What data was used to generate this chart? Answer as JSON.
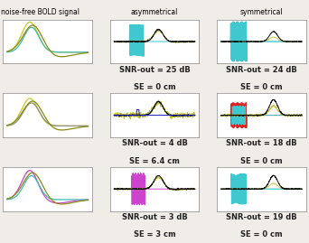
{
  "title_left": "noise-free BOLD signal",
  "title_mid": "asymmetrical",
  "title_right": "symmetrical",
  "labels": [
    [
      "SNR-out = 25 dB",
      "SE = 0 cm"
    ],
    [
      "SNR-out = 4 dB",
      "SE = 6.4 cm"
    ],
    [
      "SNR-out = 3 dB",
      "SE = 3 cm"
    ]
  ],
  "labels_right": [
    [
      "SNR-out = 24 dB",
      "SE = 0 cm"
    ],
    [
      "SNR-out = 18 dB",
      "SE = 0 cm"
    ],
    [
      "SNR-out = 19 dB",
      "SE = 0 cm"
    ]
  ],
  "bg_color": "#f0ede8",
  "font_size": 6.5,
  "lw": 0.7
}
